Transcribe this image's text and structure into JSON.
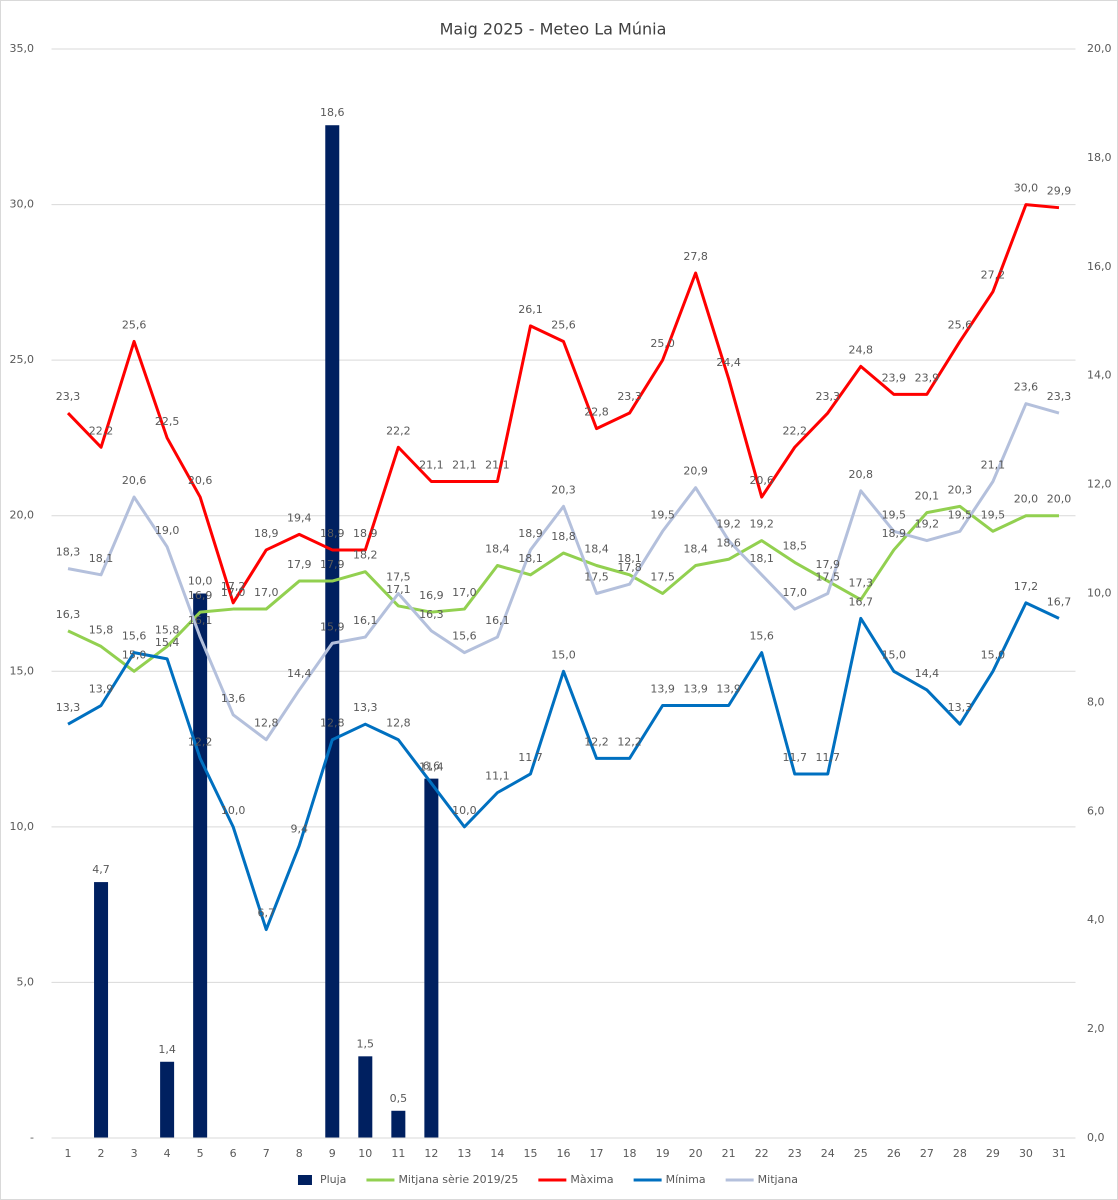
{
  "chart_data": {
    "type": "bar-line",
    "title": "Maig 2025 - Meteo La Múnia",
    "categories": [
      "1",
      "2",
      "3",
      "4",
      "5",
      "6",
      "7",
      "8",
      "9",
      "10",
      "11",
      "12",
      "13",
      "14",
      "15",
      "16",
      "17",
      "18",
      "19",
      "20",
      "21",
      "22",
      "23",
      "24",
      "25",
      "26",
      "27",
      "28",
      "29",
      "30",
      "31"
    ],
    "ylim": [
      0,
      35
    ],
    "yticks": [
      {
        "value": 0,
        "label": "-"
      },
      {
        "value": 5,
        "label": "5,0"
      },
      {
        "value": 10,
        "label": "10,0"
      },
      {
        "value": 15,
        "label": "15,0"
      },
      {
        "value": 20,
        "label": "20,0"
      },
      {
        "value": 25,
        "label": "25,0"
      },
      {
        "value": 30,
        "label": "30,0"
      },
      {
        "value": 35,
        "label": "35,0"
      }
    ],
    "y2lim": [
      0,
      20
    ],
    "y2ticks": [
      {
        "value": 0,
        "label": "0,0"
      },
      {
        "value": 2,
        "label": "2,0"
      },
      {
        "value": 4,
        "label": "4,0"
      },
      {
        "value": 6,
        "label": "6,0"
      },
      {
        "value": 8,
        "label": "8,0"
      },
      {
        "value": 10,
        "label": "10,0"
      },
      {
        "value": 12,
        "label": "12,0"
      },
      {
        "value": 14,
        "label": "14,0"
      },
      {
        "value": 16,
        "label": "16,0"
      },
      {
        "value": 18,
        "label": "18,0"
      },
      {
        "value": 20,
        "label": "20,0"
      }
    ],
    "grid": true,
    "legend": "bottom",
    "series": [
      {
        "name": "Pluja",
        "type": "bar",
        "axis": "y2",
        "color": "#002060",
        "values": [
          null,
          4.7,
          null,
          1.4,
          10.0,
          null,
          null,
          null,
          18.6,
          1.5,
          0.5,
          6.6,
          null,
          null,
          null,
          null,
          null,
          null,
          null,
          null,
          null,
          null,
          null,
          null,
          null,
          null,
          null,
          null,
          null,
          null,
          null
        ],
        "value_labels": [
          null,
          "4,7",
          null,
          "1,4",
          "10,0",
          null,
          null,
          null,
          "18,6",
          "1,5",
          "0,5",
          "6,6",
          null,
          null,
          null,
          null,
          null,
          null,
          null,
          null,
          null,
          null,
          null,
          null,
          null,
          null,
          null,
          null,
          null,
          null,
          null
        ]
      },
      {
        "name": "Mitjana sèrie 2019/25",
        "type": "line",
        "color": "#92d050",
        "values": [
          16.3,
          15.8,
          15.0,
          15.8,
          16.9,
          17.0,
          17.0,
          17.9,
          17.9,
          18.2,
          17.1,
          16.9,
          17.0,
          18.4,
          18.1,
          18.8,
          18.4,
          18.1,
          17.5,
          18.4,
          18.6,
          19.2,
          18.5,
          17.9,
          17.3,
          18.9,
          20.1,
          20.3,
          19.5,
          20.0,
          20.0
        ],
        "value_labels": [
          "16,3",
          "15,8",
          "15,0",
          "15,8",
          "16,9",
          "17,0",
          "17,0",
          "17,9",
          "17,9",
          "18,2",
          "17,1",
          "16,9",
          "17,0",
          "18,4",
          "18,1",
          "18,8",
          "18,4",
          "18,1",
          "17,5",
          "18,4",
          "18,6",
          "19,2",
          "18,5",
          "17,9",
          "17,3",
          "18,9",
          "20,1",
          "20,3",
          "19,5",
          "20,0",
          "20,0"
        ]
      },
      {
        "name": "Màxima",
        "type": "line",
        "color": "#ff0000",
        "values": [
          23.3,
          22.2,
          25.6,
          22.5,
          20.6,
          17.2,
          18.9,
          19.4,
          18.9,
          18.9,
          22.2,
          21.1,
          21.1,
          21.1,
          26.1,
          25.6,
          22.8,
          23.3,
          25.0,
          27.8,
          24.4,
          20.6,
          22.2,
          23.3,
          24.8,
          23.9,
          23.9,
          25.6,
          27.2,
          30.0,
          29.9
        ],
        "value_labels": [
          "23,3",
          "22,2",
          "25,6",
          "22,5",
          "20,6",
          "17,2",
          "18,9",
          "19,4",
          "18,9",
          "18,9",
          "22,2",
          "21,1",
          "21,1",
          "21,1",
          "26,1",
          "25,6",
          "22,8",
          "23,3",
          "25,0",
          "27,8",
          "24,4",
          "20,6",
          "22,2",
          "23,3",
          "24,8",
          "23,9",
          "23,9",
          "25,6",
          "27,2",
          "30,0",
          "29,9"
        ]
      },
      {
        "name": "Mínima",
        "type": "line",
        "color": "#0070c0",
        "values": [
          13.3,
          13.9,
          15.6,
          15.4,
          12.2,
          10.0,
          6.7,
          9.4,
          12.8,
          13.3,
          12.8,
          11.4,
          10.0,
          11.1,
          11.7,
          15.0,
          12.2,
          12.2,
          13.9,
          13.9,
          13.9,
          15.6,
          11.7,
          11.7,
          16.7,
          15.0,
          14.4,
          13.3,
          15.0,
          17.2,
          16.7
        ],
        "value_labels": [
          "13,3",
          "13,9",
          "15,6",
          "15,4",
          "12,2",
          "10,0",
          "6,7",
          "9,4",
          "12,8",
          "13,3",
          "12,8",
          "11,4",
          "10,0",
          "11,1",
          "11,7",
          "15,0",
          "12,2",
          "12,2",
          "13,9",
          "13,9",
          "13,9",
          "15,6",
          "11,7",
          "11,7",
          "16,7",
          "15,0",
          "14,4",
          "13,3",
          "15,0",
          "17,2",
          "16,7"
        ]
      },
      {
        "name": "Mitjana",
        "type": "line",
        "color": "#b4c0dc",
        "values": [
          18.3,
          18.1,
          20.6,
          19.0,
          16.1,
          13.6,
          12.8,
          14.4,
          15.9,
          16.1,
          17.5,
          16.3,
          15.6,
          16.1,
          18.9,
          20.3,
          17.5,
          17.8,
          19.5,
          20.9,
          19.2,
          18.1,
          17.0,
          17.5,
          20.8,
          19.5,
          19.2,
          19.5,
          21.1,
          23.6,
          23.3
        ],
        "value_labels": [
          "18,3",
          "18,1",
          "20,6",
          "19,0",
          "16,1",
          "13,6",
          "12,8",
          "14,4",
          "15,9",
          "16,1",
          "17,5",
          "16,3",
          "15,6",
          "16,1",
          "18,9",
          "20,3",
          "17,5",
          "17,8",
          "19,5",
          "20,9",
          "19,2",
          "18,1",
          "17,0",
          "17,5",
          "20,8",
          "19,5",
          "19,2",
          "19,5",
          "21,1",
          "23,6",
          "23,3"
        ]
      }
    ]
  }
}
